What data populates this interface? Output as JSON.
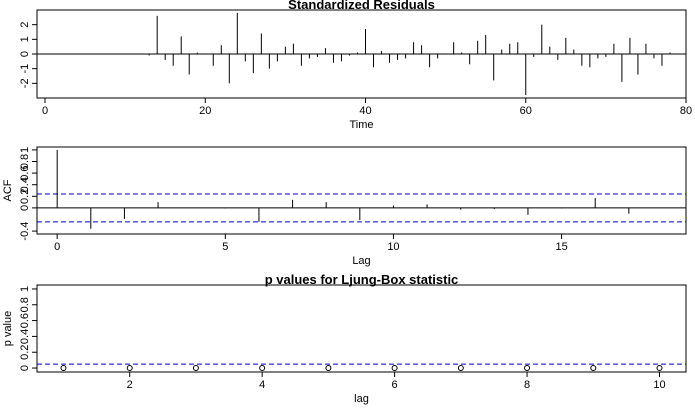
{
  "chart_data": [
    {
      "type": "line",
      "title": "Standardized Residuals",
      "xlabel": "Time",
      "ylabel": "",
      "xlim": [
        -1,
        80
      ],
      "ylim": [
        -3,
        3
      ],
      "xticks": [
        0,
        20,
        40,
        60,
        80
      ],
      "yticks": [
        -2,
        -1,
        0,
        1,
        2
      ],
      "x": [
        13,
        14,
        15,
        16,
        17,
        18,
        19,
        20,
        21,
        22,
        23,
        24,
        25,
        26,
        27,
        28,
        29,
        30,
        31,
        32,
        33,
        34,
        35,
        36,
        37,
        38,
        39,
        40,
        41,
        42,
        43,
        44,
        45,
        46,
        47,
        48,
        49,
        50,
        51,
        52,
        53,
        54,
        55,
        56,
        57,
        58,
        59,
        60,
        61,
        62,
        63,
        64,
        65,
        66,
        67,
        68,
        69,
        70,
        71,
        72,
        73,
        74,
        75,
        76,
        77,
        78
      ],
      "values": [
        -0.1,
        2.6,
        -0.4,
        -0.8,
        1.2,
        -1.4,
        0.1,
        0.0,
        -0.8,
        0.6,
        -2.0,
        2.8,
        -0.5,
        -1.3,
        1.4,
        -1.0,
        -0.5,
        0.5,
        0.7,
        -0.8,
        -0.3,
        -0.2,
        0.4,
        -0.6,
        -0.5,
        -0.1,
        0.1,
        1.7,
        -0.9,
        0.2,
        -0.6,
        -0.4,
        -0.3,
        0.8,
        0.6,
        -0.9,
        -0.3,
        0.0,
        0.8,
        0.1,
        -0.7,
        0.9,
        1.3,
        -1.8,
        0.3,
        0.7,
        0.8,
        -2.8,
        -0.2,
        2.0,
        0.5,
        -0.4,
        1.1,
        0.3,
        -0.8,
        -0.9,
        -0.3,
        -0.2,
        0.7,
        -1.9,
        1.1,
        -1.4,
        0.7,
        -0.3,
        -0.8,
        0.1
      ]
    },
    {
      "type": "bar",
      "title": "",
      "xlabel": "Lag",
      "ylabel": "ACF",
      "xlim": [
        -0.6,
        18.7
      ],
      "ylim": [
        -0.45,
        1.05
      ],
      "xticks": [
        0,
        5,
        10,
        15
      ],
      "yticks": [
        -0.4,
        0.0,
        0.2,
        0.4,
        0.6,
        0.8,
        1.0
      ],
      "x": [
        0,
        1,
        2,
        3,
        4,
        5,
        6,
        7,
        8,
        9,
        10,
        11,
        12,
        13,
        14,
        15,
        16,
        17
      ],
      "values": [
        1.0,
        -0.36,
        -0.19,
        0.1,
        0.0,
        -0.01,
        -0.24,
        0.14,
        0.1,
        -0.21,
        0.04,
        0.06,
        -0.03,
        -0.02,
        -0.12,
        -0.01,
        0.17,
        -0.1
      ],
      "confidence_band": 0.24
    },
    {
      "type": "scatter",
      "title": "p values for Ljung-Box statistic",
      "xlabel": "lag",
      "ylabel": "p value",
      "xlim": [
        0.6,
        10.4
      ],
      "ylim": [
        -0.05,
        1.05
      ],
      "xticks": [
        2,
        4,
        6,
        8,
        10
      ],
      "yticks": [
        0.0,
        0.2,
        0.4,
        0.6,
        0.8,
        1.0
      ],
      "x": [
        1,
        2,
        3,
        4,
        5,
        6,
        7,
        8,
        9,
        10
      ],
      "values": [
        0.0,
        0.0,
        0.0,
        0.0,
        0.0,
        0.0,
        0.0,
        0.0,
        0.0,
        0.0
      ],
      "reference_line": 0.05
    }
  ]
}
